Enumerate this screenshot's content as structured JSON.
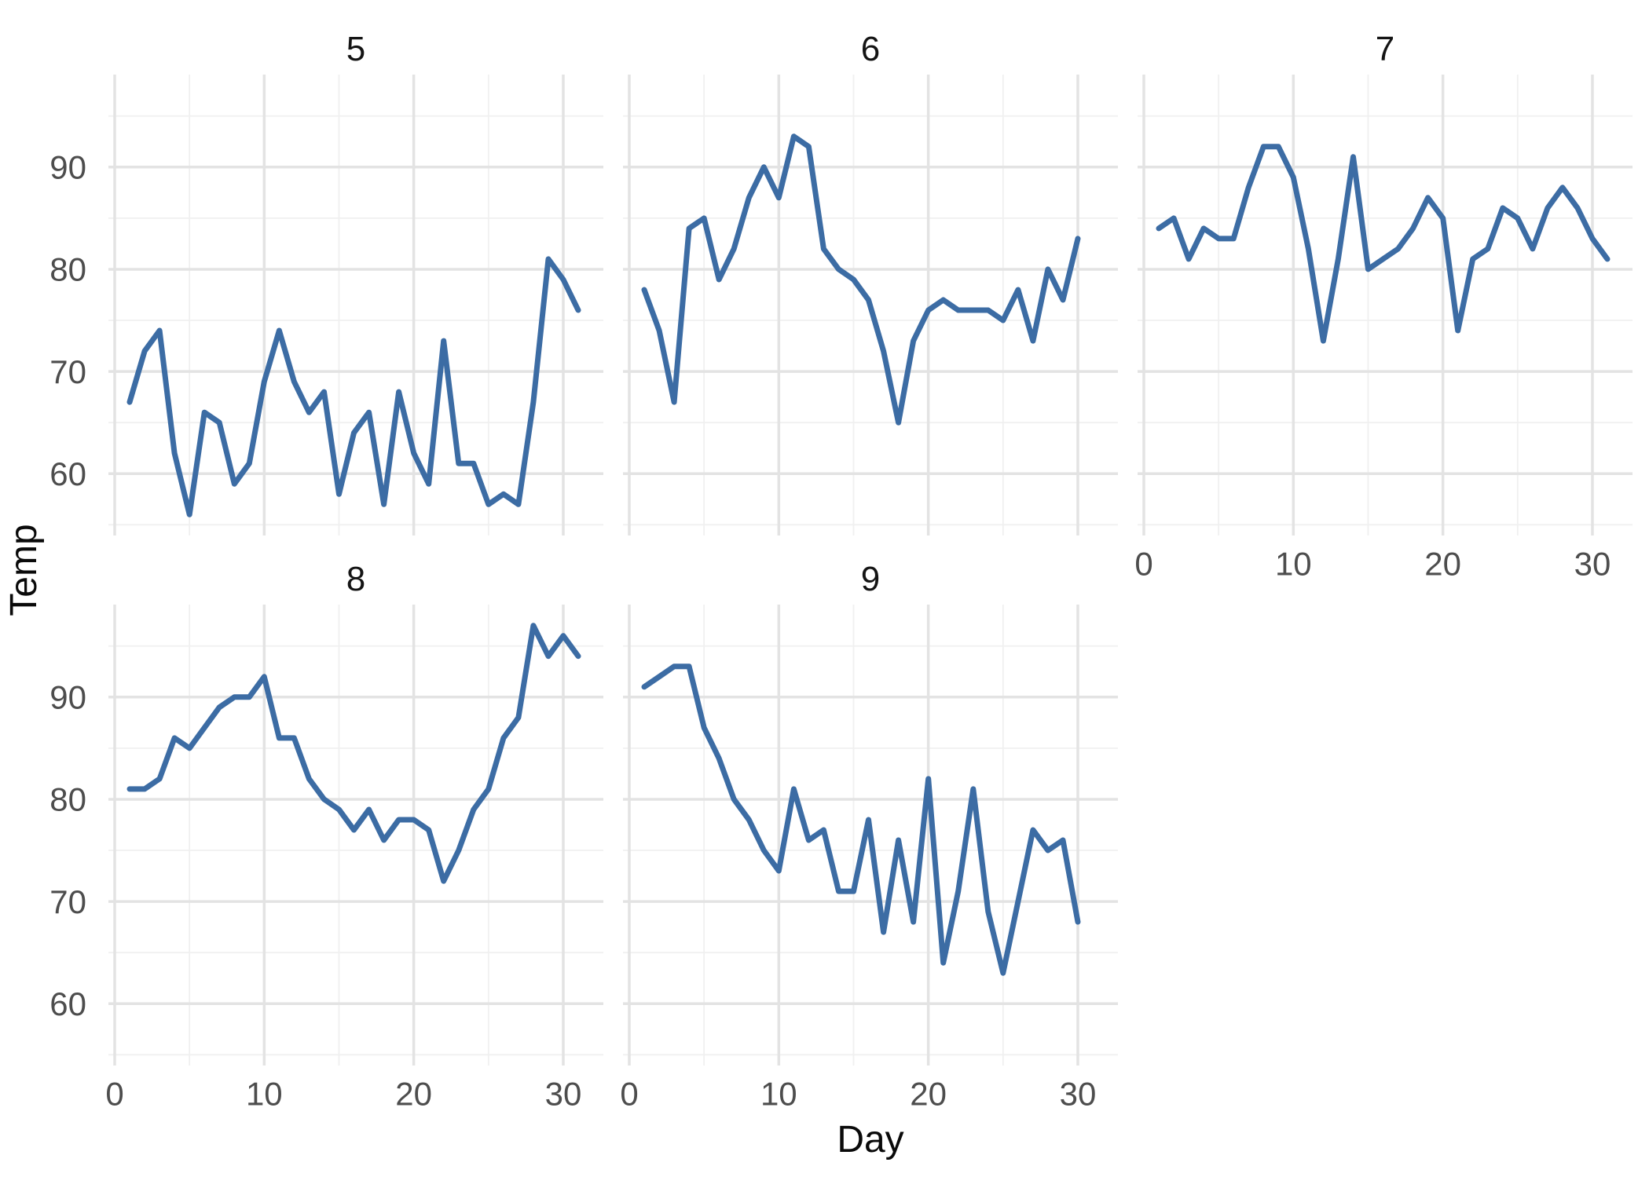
{
  "chart_data": {
    "type": "line",
    "title": "",
    "xlabel": "Day",
    "ylabel": "Temp",
    "faceted_by": "month",
    "legend_position": "none",
    "grid": "major and minor, light gray on white panel",
    "x_axis_ticks": [
      0,
      10,
      20,
      30
    ],
    "x_axis_minor_ticks": [
      5,
      15,
      25
    ],
    "y_axis_ticks": [
      60,
      70,
      80,
      90
    ],
    "y_axis_minor_ticks": [
      55,
      65,
      75,
      85,
      95
    ],
    "x_range": [
      -0.42,
      32.68
    ],
    "y_range": [
      53.95,
      99.05
    ],
    "line_color": "#3C6CA4",
    "facets": [
      {
        "label": "5",
        "day_start": 1,
        "temps": [
          67,
          72,
          74,
          62,
          56,
          66,
          65,
          59,
          61,
          69,
          74,
          69,
          66,
          68,
          58,
          64,
          66,
          57,
          68,
          62,
          59,
          73,
          61,
          61,
          57,
          58,
          57,
          67,
          81,
          79,
          76
        ]
      },
      {
        "label": "6",
        "day_start": 1,
        "temps": [
          78,
          74,
          67,
          84,
          85,
          79,
          82,
          87,
          90,
          87,
          93,
          92,
          82,
          80,
          79,
          77,
          72,
          65,
          73,
          76,
          77,
          76,
          76,
          76,
          75,
          78,
          73,
          80,
          77,
          83
        ]
      },
      {
        "label": "7",
        "day_start": 1,
        "temps": [
          84,
          85,
          81,
          84,
          83,
          83,
          88,
          92,
          92,
          89,
          82,
          73,
          81,
          91,
          80,
          81,
          82,
          84,
          87,
          85,
          74,
          81,
          82,
          86,
          85,
          82,
          86,
          88,
          86,
          83,
          81
        ]
      },
      {
        "label": "8",
        "day_start": 1,
        "temps": [
          81,
          81,
          82,
          86,
          85,
          87,
          89,
          90,
          90,
          92,
          86,
          86,
          82,
          80,
          79,
          77,
          79,
          76,
          78,
          78,
          77,
          72,
          75,
          79,
          81,
          86,
          88,
          97,
          94,
          96,
          94
        ]
      },
      {
        "label": "9",
        "day_start": 1,
        "temps": [
          91,
          92,
          93,
          93,
          87,
          84,
          80,
          78,
          75,
          73,
          81,
          76,
          77,
          71,
          71,
          78,
          67,
          76,
          68,
          82,
          64,
          71,
          81,
          69,
          63,
          70,
          77,
          75,
          76,
          68
        ]
      }
    ]
  },
  "colors": {
    "background": "#FFFFFF",
    "grid_major": "#E3E3E3",
    "grid_minor": "#F0F0F0",
    "tick_label": "#4D4D4D",
    "strip_label": "#141414",
    "axis_title": "#0A0A0A",
    "line": "#3C6CA4"
  }
}
